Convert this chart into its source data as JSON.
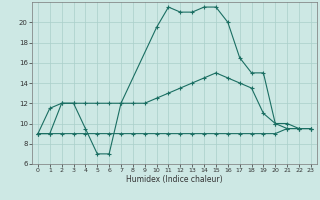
{
  "xlabel": "Humidex (Indice chaleur)",
  "background_color": "#cde8e4",
  "grid_color": "#aacfca",
  "line_color": "#1a6e62",
  "xlim": [
    -0.5,
    23.5
  ],
  "ylim": [
    6,
    22
  ],
  "yticks": [
    6,
    8,
    10,
    12,
    14,
    16,
    18,
    20
  ],
  "xticks": [
    0,
    1,
    2,
    3,
    4,
    5,
    6,
    7,
    8,
    9,
    10,
    11,
    12,
    13,
    14,
    15,
    16,
    17,
    18,
    19,
    20,
    21,
    22,
    23
  ],
  "line1_x": [
    0,
    1,
    2,
    3,
    4,
    5,
    6,
    7,
    10,
    11,
    12,
    13,
    14,
    15,
    16,
    17,
    18,
    19,
    20,
    21,
    22,
    23
  ],
  "line1_y": [
    9,
    11.5,
    12,
    12,
    9.5,
    7,
    7,
    12,
    19.5,
    21.5,
    21,
    21,
    21.5,
    21.5,
    20,
    16.5,
    15,
    15,
    10,
    10,
    9.5,
    9.5
  ],
  "line2_x": [
    0,
    1,
    2,
    3,
    4,
    5,
    6,
    7,
    8,
    9,
    10,
    11,
    12,
    13,
    14,
    15,
    16,
    17,
    18,
    19,
    20,
    21,
    22,
    23
  ],
  "line2_y": [
    9,
    9,
    9,
    9,
    9,
    9,
    9,
    9,
    9,
    9,
    9,
    9,
    9,
    9,
    9,
    9,
    9,
    9,
    9,
    9,
    9,
    9.5,
    9.5,
    9.5
  ],
  "line3_x": [
    0,
    1,
    2,
    3,
    4,
    5,
    6,
    7,
    8,
    9,
    10,
    11,
    12,
    13,
    14,
    15,
    16,
    17,
    18,
    19,
    20,
    21,
    22,
    23
  ],
  "line3_y": [
    9,
    9,
    12,
    12,
    12,
    12,
    12,
    12,
    12,
    12,
    12.5,
    13,
    13.5,
    14,
    14.5,
    15,
    14.5,
    14,
    13.5,
    11,
    10,
    9.5,
    9.5,
    9.5
  ]
}
